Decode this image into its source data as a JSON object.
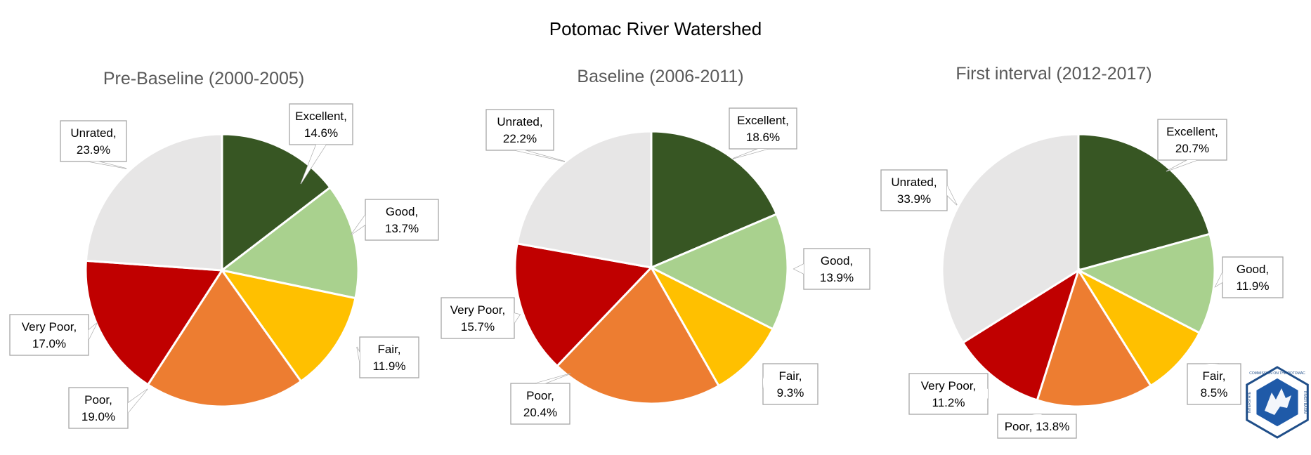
{
  "main_title": "Potomac River Watershed",
  "colors": {
    "Excellent": "#375623",
    "Good": "#A9D18E",
    "Fair": "#FFC000",
    "Poor": "#ED7D31",
    "Very Poor": "#C00000",
    "Unrated": "#E7E6E6"
  },
  "chart_data": [
    {
      "type": "pie",
      "title": "Pre-Baseline (2000-2005)",
      "categories": [
        "Excellent",
        "Good",
        "Fair",
        "Poor",
        "Very Poor",
        "Unrated"
      ],
      "values": [
        14.6,
        13.7,
        11.9,
        19.0,
        17.0,
        23.9
      ],
      "labels": [
        [
          "Excellent,",
          "14.6%"
        ],
        [
          "Good,",
          "13.7%"
        ],
        [
          "Fair,",
          "11.9%"
        ],
        [
          "Poor,",
          "19.0%"
        ],
        [
          "Very Poor,",
          "17.0%"
        ],
        [
          "Unrated,",
          "23.9%"
        ]
      ]
    },
    {
      "type": "pie",
      "title": "Baseline (2006-2011)",
      "categories": [
        "Excellent",
        "Good",
        "Fair",
        "Poor",
        "Very Poor",
        "Unrated"
      ],
      "values": [
        18.6,
        13.9,
        9.3,
        20.4,
        15.7,
        22.2
      ],
      "labels": [
        [
          "Excellent,",
          "18.6%"
        ],
        [
          "Good,",
          "13.9%"
        ],
        [
          "Fair,",
          "9.3%"
        ],
        [
          "Poor,",
          "20.4%"
        ],
        [
          "Very Poor,",
          "15.7%"
        ],
        [
          "Unrated,",
          "22.2%"
        ]
      ]
    },
    {
      "type": "pie",
      "title": "First interval (2012-2017)",
      "categories": [
        "Excellent",
        "Good",
        "Fair",
        "Poor",
        "Very Poor",
        "Unrated"
      ],
      "values": [
        20.7,
        11.9,
        8.5,
        13.8,
        11.2,
        33.9
      ],
      "labels": [
        [
          "Excellent,",
          "20.7%"
        ],
        [
          "Good,",
          "11.9%"
        ],
        [
          "Fair,",
          "8.5%"
        ],
        [
          "Poor, 13.8%"
        ],
        [
          "Very Poor,",
          "11.2%"
        ],
        [
          "Unrated,",
          "33.9%"
        ]
      ]
    }
  ],
  "logo": {
    "ring_text_top": "COMMISSION ON THE POTOMAC",
    "ring_text_left": "INTERSTATE",
    "ring_text_right": "RIVER BASIN"
  }
}
